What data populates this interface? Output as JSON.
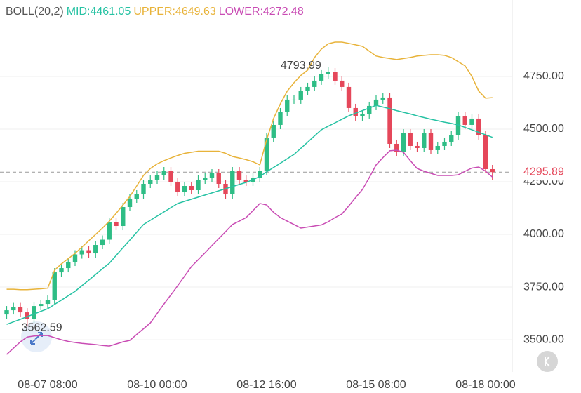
{
  "chart_data": {
    "type": "candlestick",
    "indicator": "BOLL(20,2)",
    "categories": [
      null,
      null,
      null,
      null,
      null,
      null,
      "08-07 08:00",
      null,
      null,
      null,
      null,
      null,
      null,
      null,
      null,
      null,
      null,
      null,
      null,
      null,
      null,
      null,
      "08-10 00:00",
      null,
      null,
      null,
      null,
      null,
      null,
      null,
      null,
      null,
      null,
      null,
      null,
      null,
      null,
      null,
      "08-12 16:00",
      null,
      null,
      null,
      null,
      null,
      null,
      null,
      null,
      null,
      null,
      null,
      null,
      null,
      null,
      null,
      "08-15 08:00",
      null,
      null,
      null,
      null,
      null,
      null,
      null,
      null,
      null,
      null,
      null,
      null,
      null,
      null,
      null,
      "08-18 00:00",
      null
    ],
    "open": [
      3620,
      3640,
      3655,
      3630,
      3600,
      3660,
      3670,
      3690,
      3820,
      3840,
      3870,
      3905,
      3925,
      3910,
      3950,
      3975,
      4060,
      4040,
      4130,
      4170,
      4190,
      4240,
      4260,
      4280,
      4300,
      4250,
      4200,
      4230,
      4210,
      4260,
      4270,
      4290,
      4240,
      4190,
      4300,
      4260,
      4250,
      4270,
      4300,
      4460,
      4520,
      4580,
      4640,
      4640,
      4680,
      4700,
      4730,
      4760,
      4770,
      4730,
      4700,
      4600,
      4560,
      4570,
      4610,
      4640,
      4650,
      4430,
      4390,
      4480,
      4420,
      4410,
      4480,
      4400,
      4420,
      4440,
      4470,
      4560,
      4520,
      4550,
      4470,
      4310
    ],
    "high": [
      3660,
      3675,
      3675,
      3650,
      3680,
      3690,
      3710,
      3840,
      3860,
      3890,
      3925,
      3945,
      3945,
      3970,
      3995,
      4080,
      4080,
      4150,
      4190,
      4210,
      4260,
      4280,
      4300,
      4320,
      4320,
      4270,
      4250,
      4250,
      4280,
      4290,
      4310,
      4310,
      4260,
      4320,
      4320,
      4280,
      4290,
      4320,
      4480,
      4540,
      4600,
      4660,
      4660,
      4700,
      4720,
      4750,
      4780,
      4793.99,
      4790,
      4750,
      4720,
      4620,
      4590,
      4630,
      4660,
      4670,
      4670,
      4450,
      4500,
      4500,
      4440,
      4500,
      4500,
      4440,
      4460,
      4490,
      4580,
      4580,
      4570,
      4570,
      4490,
      4330
    ],
    "low": [
      3600,
      3620,
      3610,
      3562.59,
      3580,
      3640,
      3650,
      3670,
      3800,
      3820,
      3850,
      3885,
      3890,
      3890,
      3930,
      3955,
      4020,
      4020,
      4110,
      4150,
      4170,
      4220,
      4240,
      4260,
      4230,
      4180,
      4180,
      4190,
      4190,
      4240,
      4250,
      4220,
      4170,
      4170,
      4240,
      4230,
      4230,
      4250,
      4280,
      4440,
      4500,
      4560,
      4620,
      4620,
      4660,
      4680,
      4710,
      4740,
      4710,
      4680,
      4580,
      4540,
      4540,
      4550,
      4590,
      4620,
      4410,
      4370,
      4370,
      4400,
      4390,
      4390,
      4380,
      4380,
      4400,
      4420,
      4450,
      4500,
      4500,
      4450,
      4290,
      4260
    ],
    "close": [
      3640,
      3655,
      3630,
      3600,
      3660,
      3670,
      3690,
      3820,
      3840,
      3870,
      3905,
      3925,
      3910,
      3950,
      3975,
      4060,
      4040,
      4130,
      4170,
      4190,
      4240,
      4260,
      4280,
      4300,
      4250,
      4200,
      4230,
      4210,
      4260,
      4270,
      4290,
      4240,
      4190,
      4300,
      4260,
      4250,
      4270,
      4300,
      4460,
      4520,
      4580,
      4640,
      4640,
      4680,
      4700,
      4730,
      4760,
      4770,
      4730,
      4700,
      4600,
      4560,
      4570,
      4610,
      4640,
      4650,
      4430,
      4390,
      4480,
      4420,
      4410,
      4480,
      4400,
      4420,
      4440,
      4470,
      4560,
      4520,
      4550,
      4470,
      4310,
      4295.89
    ],
    "up_color": "#2ebd85",
    "down_color": "#e5475a",
    "series": [
      {
        "name": "MID:",
        "color": "#26c2a3",
        "values": [
          3573,
          3585,
          3597,
          3610,
          3622,
          3635,
          3647,
          3668,
          3688,
          3709,
          3730,
          3757,
          3783,
          3810,
          3837,
          3863,
          3900,
          3937,
          3973,
          4010,
          4047,
          4067,
          4087,
          4107,
          4127,
          4147,
          4157,
          4167,
          4177,
          4187,
          4197,
          4207,
          4217,
          4227,
          4237,
          4247,
          4260,
          4275,
          4297,
          4318,
          4338,
          4359,
          4380,
          4409,
          4438,
          4468,
          4497,
          4514,
          4530,
          4547,
          4563,
          4576,
          4588,
          4600,
          4613,
          4605,
          4597,
          4588,
          4580,
          4572,
          4563,
          4555,
          4547,
          4540,
          4533,
          4527,
          4520,
          4508,
          4497,
          4485,
          4473,
          4461.05
        ]
      },
      {
        "name": "UPPER:",
        "color": "#e8b33a",
        "values": [
          3740,
          3740,
          3738,
          3738,
          3740,
          3742,
          3745,
          3830,
          3860,
          3885,
          3910,
          3940,
          3970,
          4000,
          4030,
          4063,
          4100,
          4140,
          4180,
          4230,
          4280,
          4313,
          4335,
          4350,
          4363,
          4375,
          4385,
          4390,
          4395,
          4395,
          4395,
          4395,
          4385,
          4370,
          4363,
          4355,
          4345,
          4330,
          4450,
          4550,
          4620,
          4680,
          4720,
          4755,
          4780,
          4840,
          4880,
          4905,
          4913,
          4913,
          4907,
          4900,
          4893,
          4870,
          4847,
          4840,
          4835,
          4830,
          4835,
          4840,
          4847,
          4850,
          4853,
          4853,
          4850,
          4840,
          4820,
          4800,
          4750,
          4680,
          4647,
          4649.63
        ]
      },
      {
        "name": "LOWER:",
        "color": "#c94cb4",
        "values": [
          3430,
          3460,
          3490,
          3513,
          3518,
          3520,
          3520,
          3510,
          3500,
          3492,
          3487,
          3483,
          3480,
          3477,
          3473,
          3470,
          3480,
          3490,
          3497,
          3525,
          3552,
          3580,
          3625,
          3670,
          3713,
          3757,
          3802,
          3847,
          3880,
          3913,
          3947,
          3980,
          4013,
          4047,
          4063,
          4080,
          4113,
          4147,
          4140,
          4105,
          4080,
          4063,
          4047,
          4030,
          4035,
          4040,
          4045,
          4060,
          4080,
          4097,
          4135,
          4175,
          4213,
          4270,
          4330,
          4365,
          4397,
          4400,
          4390,
          4350,
          4313,
          4300,
          4290,
          4280,
          4280,
          4280,
          4283,
          4300,
          4315,
          4320,
          4300,
          4272.48
        ]
      }
    ],
    "ylim": [
      3347,
      5113
    ],
    "yticks": [
      {
        "value": 3500,
        "label": "3500.00"
      },
      {
        "value": 3750,
        "label": "3750.00"
      },
      {
        "value": 4000,
        "label": "4000.00"
      },
      {
        "value": 4250,
        "label": "4250.00"
      },
      {
        "value": 4500,
        "label": "4500.00"
      },
      {
        "value": 4750,
        "label": "4750.00"
      }
    ],
    "grid": true
  }
}
